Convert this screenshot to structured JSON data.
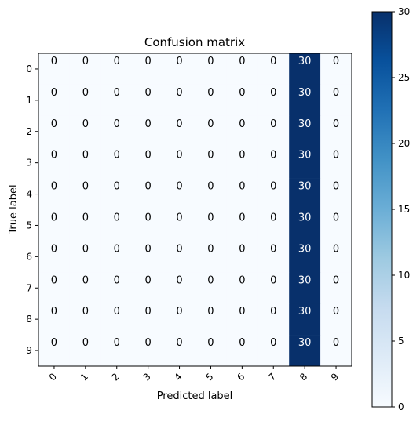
{
  "chart_data": {
    "type": "heatmap",
    "title": "Confusion matrix",
    "xlabel": "Predicted label",
    "ylabel": "True label",
    "x_ticks": [
      "0",
      "1",
      "2",
      "3",
      "4",
      "5",
      "6",
      "7",
      "8",
      "9"
    ],
    "y_ticks": [
      "0",
      "1",
      "2",
      "3",
      "4",
      "5",
      "6",
      "7",
      "8",
      "9"
    ],
    "matrix": [
      [
        0,
        0,
        0,
        0,
        0,
        0,
        0,
        0,
        30,
        0
      ],
      [
        0,
        0,
        0,
        0,
        0,
        0,
        0,
        0,
        30,
        0
      ],
      [
        0,
        0,
        0,
        0,
        0,
        0,
        0,
        0,
        30,
        0
      ],
      [
        0,
        0,
        0,
        0,
        0,
        0,
        0,
        0,
        30,
        0
      ],
      [
        0,
        0,
        0,
        0,
        0,
        0,
        0,
        0,
        30,
        0
      ],
      [
        0,
        0,
        0,
        0,
        0,
        0,
        0,
        0,
        30,
        0
      ],
      [
        0,
        0,
        0,
        0,
        0,
        0,
        0,
        0,
        30,
        0
      ],
      [
        0,
        0,
        0,
        0,
        0,
        0,
        0,
        0,
        30,
        0
      ],
      [
        0,
        0,
        0,
        0,
        0,
        0,
        0,
        0,
        30,
        0
      ],
      [
        0,
        0,
        0,
        0,
        0,
        0,
        0,
        0,
        30,
        0
      ]
    ],
    "colormap": "Blues",
    "colorbar": {
      "min": 0,
      "max": 30,
      "ticks": [
        0,
        5,
        10,
        15,
        20,
        25,
        30
      ],
      "low_color": "#f7fbff",
      "high_color": "#08306b"
    },
    "cell_text_colors": {
      "on_light": "#000000",
      "on_dark": "#ffffff"
    },
    "x_tick_rotation": "45° (right-aligned)",
    "grid": false,
    "legend": "colorbar at right"
  }
}
